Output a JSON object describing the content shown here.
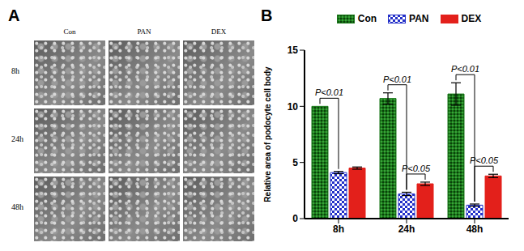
{
  "image_panel": {
    "panel_label": "A",
    "columns": [
      "Con",
      "PAN",
      "DEX"
    ],
    "rows": [
      "8h",
      "24h",
      "48h"
    ]
  },
  "chart_data": {
    "type": "bar",
    "panel_label": "B",
    "categories": [
      "8h",
      "24h",
      "48h"
    ],
    "y_label": "Relative area of podocyte cell body",
    "ylim": [
      0,
      15
    ],
    "yticks": [
      0,
      5,
      10,
      15
    ],
    "legend": "top",
    "series": [
      {
        "name": "Con",
        "color": "#1a7a1a",
        "values": [
          10.0,
          10.7,
          11.1
        ],
        "errors": [
          0,
          0.5,
          1.0
        ]
      },
      {
        "name": "PAN",
        "color": "#2330c8",
        "values": [
          4.1,
          2.2,
          1.2
        ],
        "errors": [
          0.1,
          0.15,
          0.1
        ]
      },
      {
        "name": "DEX",
        "color": "#e3201b",
        "values": [
          4.5,
          3.1,
          3.8
        ],
        "errors": [
          0.1,
          0.15,
          0.15
        ]
      }
    ],
    "comparisons": [
      {
        "category": "8h",
        "from": "Con",
        "to": "PAN",
        "label": "P<0.01"
      },
      {
        "category": "24h",
        "from": "Con",
        "to": "PAN",
        "label": "P<0.01"
      },
      {
        "category": "24h",
        "from": "PAN",
        "to": "DEX",
        "label": "P<0.05"
      },
      {
        "category": "48h",
        "from": "Con",
        "to": "PAN",
        "label": "P<0.01"
      },
      {
        "category": "48h",
        "from": "PAN",
        "to": "DEX",
        "label": "P<0.05"
      }
    ]
  }
}
